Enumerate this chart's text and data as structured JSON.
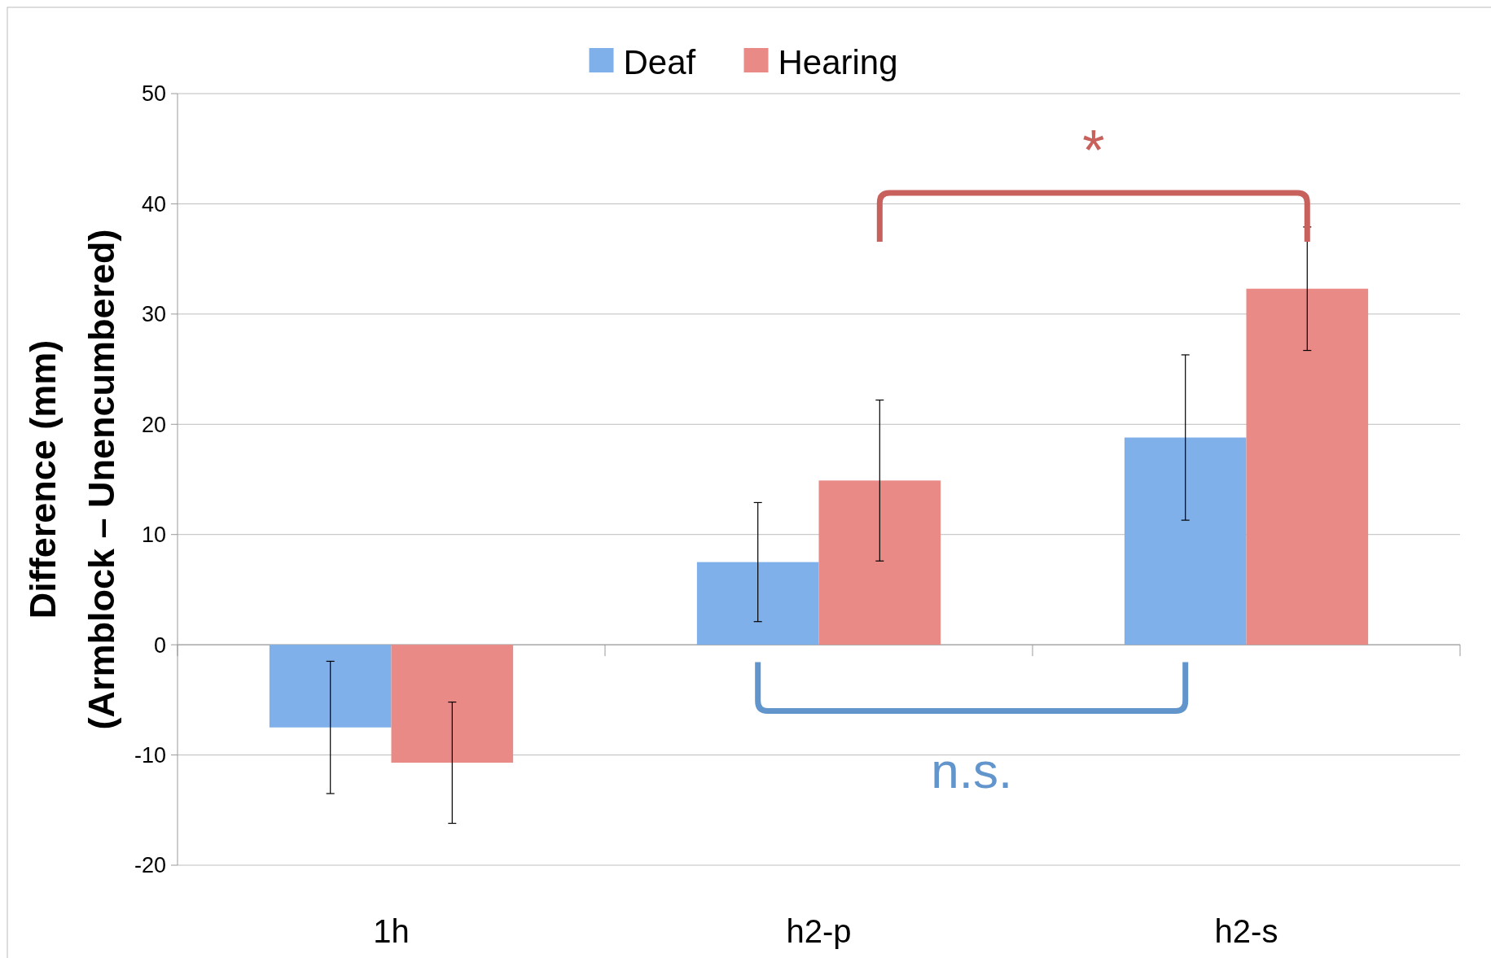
{
  "chart_data": {
    "type": "bar",
    "ylabel": "Difference (mm)\n(Armblock – Unencumbered)",
    "categories": [
      "1h",
      "h2-p",
      "h2-s"
    ],
    "series": [
      {
        "name": "Deaf",
        "color": "#7fb0ea",
        "values": [
          -7.5,
          7.5,
          18.8
        ],
        "errors": [
          6,
          5.4,
          7.5
        ]
      },
      {
        "name": "Hearing",
        "color": "#ea8a86",
        "values": [
          -10.7,
          14.9,
          32.3
        ],
        "errors": [
          5.5,
          7.3,
          5.6
        ]
      }
    ],
    "ylim": [
      -20,
      50
    ],
    "yticks": [
      -20,
      -10,
      0,
      10,
      20,
      30,
      40,
      50
    ],
    "grid": "y",
    "legend": "top",
    "annotations": [
      "*",
      "n.s."
    ]
  }
}
